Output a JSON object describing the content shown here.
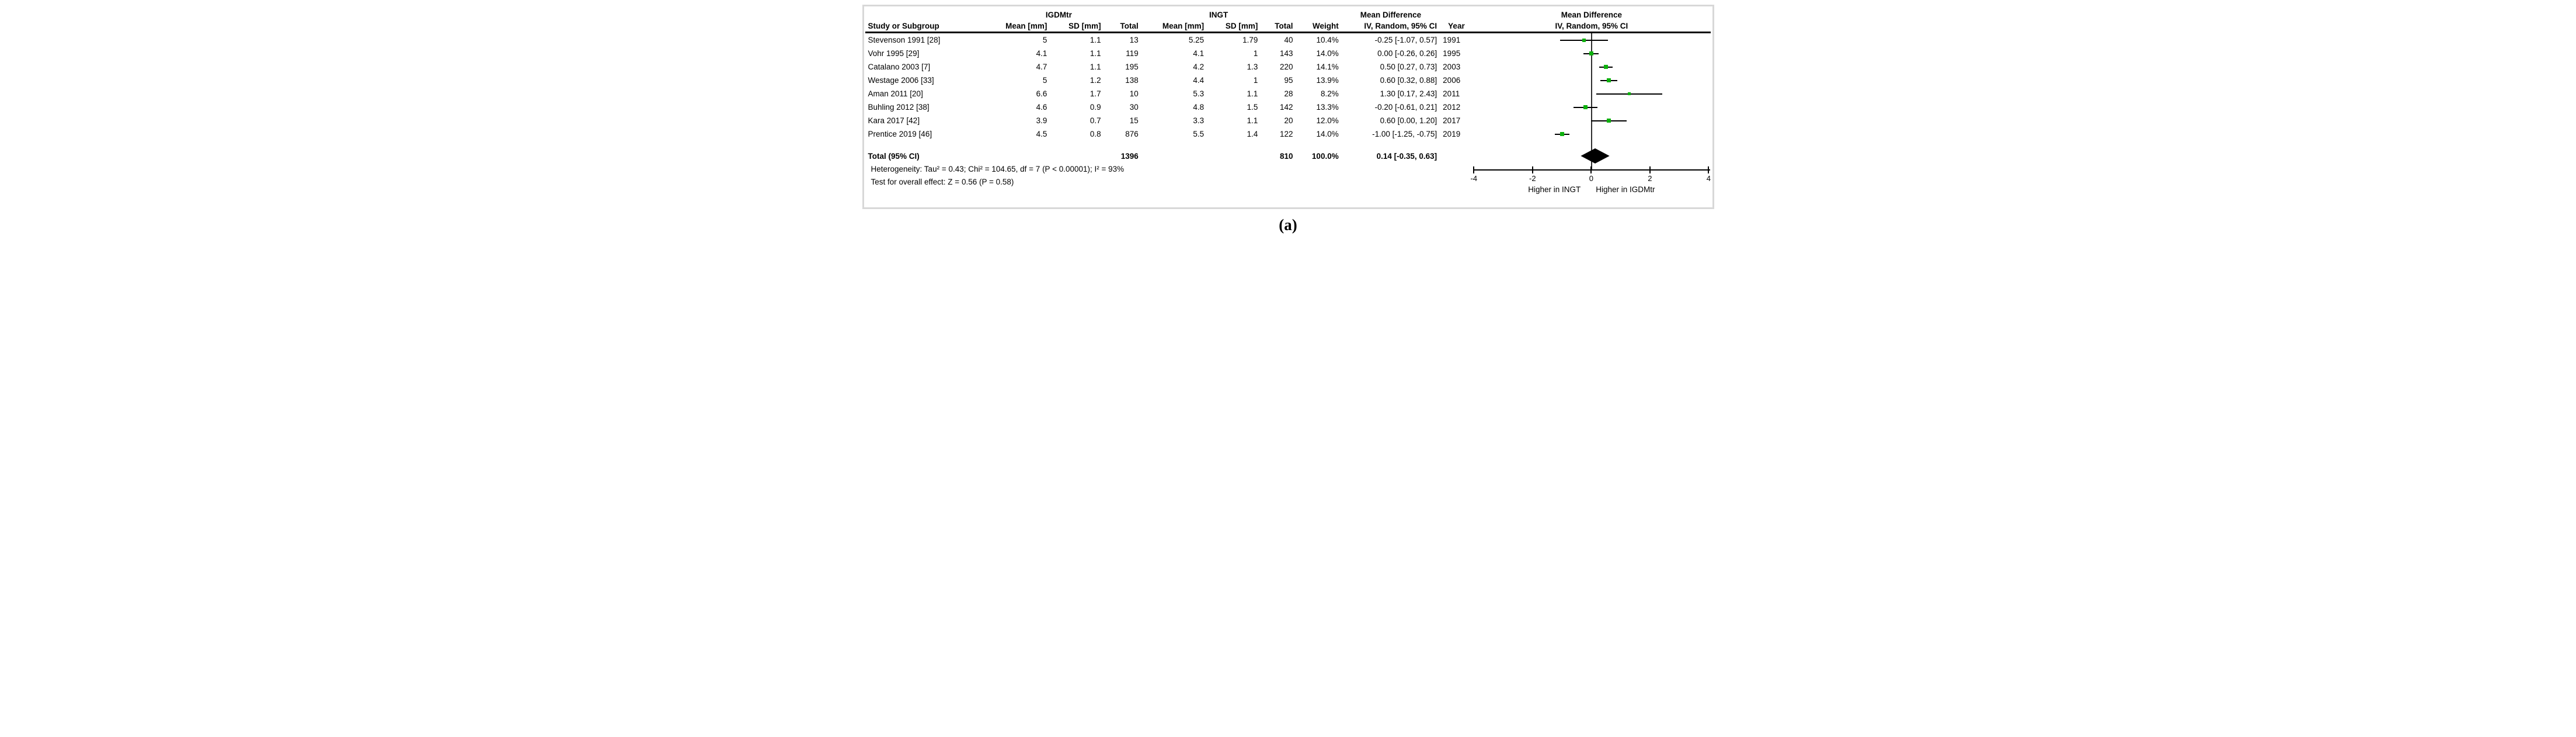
{
  "caption": "(a)",
  "panel": {
    "border_color": "#d8d8d8",
    "background": "#ffffff"
  },
  "header": {
    "group_igdmtr": "IGDMtr",
    "group_ingt": "INGT",
    "group_md_left": "Mean Difference",
    "group_md_right": "Mean Difference",
    "cols": {
      "study": "Study or Subgroup",
      "mean": "Mean [mm]",
      "sd": "SD [mm]",
      "total": "Total",
      "weight": "Weight",
      "ci": "IV, Random, 95% CI",
      "year": "Year"
    }
  },
  "chart_data": {
    "type": "forest",
    "effect_measure": "Mean Difference",
    "method": "IV, Random, 95% CI",
    "group1_label": "IGDMtr",
    "group2_label": "INGT",
    "studies": [
      {
        "name": "Stevenson 1991 [28]",
        "mean1": "5",
        "sd1": "1.1",
        "n1": "13",
        "mean2": "5.25",
        "sd2": "1.79",
        "n2": "40",
        "weight": "10.4%",
        "weight_val": 10.4,
        "md": -0.25,
        "lo": -1.07,
        "hi": 0.57,
        "ci_text": "-0.25 [-1.07, 0.57]",
        "year": "1991"
      },
      {
        "name": "Vohr 1995 [29]",
        "mean1": "4.1",
        "sd1": "1.1",
        "n1": "119",
        "mean2": "4.1",
        "sd2": "1",
        "n2": "143",
        "weight": "14.0%",
        "weight_val": 14.0,
        "md": 0.0,
        "lo": -0.26,
        "hi": 0.26,
        "ci_text": "0.00 [-0.26, 0.26]",
        "year": "1995"
      },
      {
        "name": "Catalano 2003 [7]",
        "mean1": "4.7",
        "sd1": "1.1",
        "n1": "195",
        "mean2": "4.2",
        "sd2": "1.3",
        "n2": "220",
        "weight": "14.1%",
        "weight_val": 14.1,
        "md": 0.5,
        "lo": 0.27,
        "hi": 0.73,
        "ci_text": "0.50 [0.27, 0.73]",
        "year": "2003"
      },
      {
        "name": "Westage 2006 [33]",
        "mean1": "5",
        "sd1": "1.2",
        "n1": "138",
        "mean2": "4.4",
        "sd2": "1",
        "n2": "95",
        "weight": "13.9%",
        "weight_val": 13.9,
        "md": 0.6,
        "lo": 0.32,
        "hi": 0.88,
        "ci_text": "0.60 [0.32, 0.88]",
        "year": "2006"
      },
      {
        "name": "Aman 2011 [20]",
        "mean1": "6.6",
        "sd1": "1.7",
        "n1": "10",
        "mean2": "5.3",
        "sd2": "1.1",
        "n2": "28",
        "weight": "8.2%",
        "weight_val": 8.2,
        "md": 1.3,
        "lo": 0.17,
        "hi": 2.43,
        "ci_text": "1.30 [0.17, 2.43]",
        "year": "2011"
      },
      {
        "name": "Buhling 2012 [38]",
        "mean1": "4.6",
        "sd1": "0.9",
        "n1": "30",
        "mean2": "4.8",
        "sd2": "1.5",
        "n2": "142",
        "weight": "13.3%",
        "weight_val": 13.3,
        "md": -0.2,
        "lo": -0.61,
        "hi": 0.21,
        "ci_text": "-0.20 [-0.61, 0.21]",
        "year": "2012"
      },
      {
        "name": "Kara 2017 [42]",
        "mean1": "3.9",
        "sd1": "0.7",
        "n1": "15",
        "mean2": "3.3",
        "sd2": "1.1",
        "n2": "20",
        "weight": "12.0%",
        "weight_val": 12.0,
        "md": 0.6,
        "lo": 0.0,
        "hi": 1.2,
        "ci_text": "0.60 [0.00, 1.20]",
        "year": "2017"
      },
      {
        "name": "Prentice 2019 [46]",
        "mean1": "4.5",
        "sd1": "0.8",
        "n1": "876",
        "mean2": "5.5",
        "sd2": "1.4",
        "n2": "122",
        "weight": "14.0%",
        "weight_val": 14.0,
        "md": -1.0,
        "lo": -1.25,
        "hi": -0.75,
        "ci_text": "-1.00 [-1.25, -0.75]",
        "year": "2019"
      }
    ],
    "total": {
      "label": "Total (95% CI)",
      "n1": "1396",
      "n2": "810",
      "weight": "100.0%",
      "md": 0.14,
      "lo": -0.35,
      "hi": 0.63,
      "ci_text": "0.14 [-0.35, 0.63]"
    },
    "heterogeneity": "Heterogeneity: Tau² = 0.43; Chi² = 104.65, df = 7 (P < 0.00001); I² = 93%",
    "overall_effect": "Test for overall effect: Z = 0.56 (P = 0.58)",
    "axis": {
      "min": -4,
      "max": 4,
      "ticks": [
        "-4",
        "-2",
        "0",
        "2",
        "4"
      ],
      "tick_values": [
        -4,
        -2,
        0,
        2,
        4
      ],
      "label_left": "Higher in INGT",
      "label_right": "Higher in IGDMtr"
    },
    "colors": {
      "marker": "#0db10d",
      "line": "#000000",
      "zero_line": "#2e2e2e"
    }
  }
}
